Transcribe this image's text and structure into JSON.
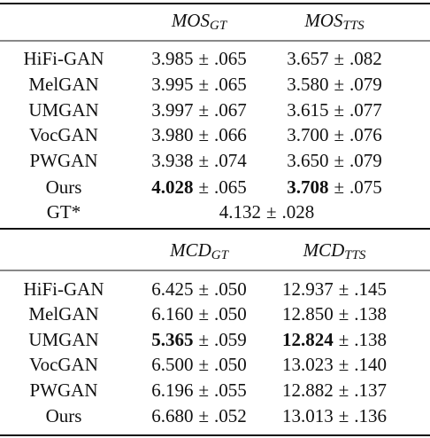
{
  "sections": [
    {
      "header": [
        {
          "main": "MOS",
          "sub": "GT"
        },
        {
          "main": "MOS",
          "sub": "TTS"
        }
      ],
      "rows": [
        {
          "name": "HiFi-GAN",
          "cells": [
            {
              "mean": "3.985",
              "pm": "±",
              "err": ".065"
            },
            {
              "mean": "3.657",
              "pm": "±",
              "err": ".082"
            }
          ]
        },
        {
          "name": "MelGAN",
          "cells": [
            {
              "mean": "3.995",
              "pm": "±",
              "err": ".065"
            },
            {
              "mean": "3.580",
              "pm": "±",
              "err": ".079"
            }
          ]
        },
        {
          "name": "UMGAN",
          "cells": [
            {
              "mean": "3.997",
              "pm": "±",
              "err": ".067"
            },
            {
              "mean": "3.615",
              "pm": "±",
              "err": ".077"
            }
          ]
        },
        {
          "name": "VocGAN",
          "cells": [
            {
              "mean": "3.980",
              "pm": "±",
              "err": ".066"
            },
            {
              "mean": "3.700",
              "pm": "±",
              "err": ".076"
            }
          ]
        },
        {
          "name": "PWGAN",
          "cells": [
            {
              "mean": "3.938",
              "pm": "±",
              "err": ".074"
            },
            {
              "mean": "3.650",
              "pm": "±",
              "err": ".079"
            }
          ]
        },
        {
          "name": "Ours",
          "cells": [
            {
              "mean": "4.028",
              "pm": "±",
              "err": ".065",
              "bold": true
            },
            {
              "mean": "3.708",
              "pm": "±",
              "err": ".075",
              "bold": true
            }
          ]
        },
        {
          "name": "GT*",
          "span": {
            "mean": "4.132",
            "pm": "±",
            "err": ".028"
          }
        }
      ]
    },
    {
      "header": [
        {
          "main": "MCD",
          "sub": "GT"
        },
        {
          "main": "MCD",
          "sub": "TTS"
        }
      ],
      "rows": [
        {
          "name": "HiFi-GAN",
          "cells": [
            {
              "mean": "6.425",
              "pm": "±",
              "err": ".050"
            },
            {
              "mean": "12.937",
              "pm": "±",
              "err": ".145"
            }
          ]
        },
        {
          "name": "MelGAN",
          "cells": [
            {
              "mean": "6.160",
              "pm": "±",
              "err": ".050"
            },
            {
              "mean": "12.850",
              "pm": "±",
              "err": ".138"
            }
          ]
        },
        {
          "name": "UMGAN",
          "cells": [
            {
              "mean": "5.365",
              "pm": "±",
              "err": ".059",
              "bold": true
            },
            {
              "mean": "12.824",
              "pm": "±",
              "err": ".138",
              "bold": true
            }
          ]
        },
        {
          "name": "VocGAN",
          "cells": [
            {
              "mean": "6.500",
              "pm": "±",
              "err": ".050"
            },
            {
              "mean": "13.023",
              "pm": "±",
              "err": ".140"
            }
          ]
        },
        {
          "name": "PWGAN",
          "cells": [
            {
              "mean": "6.196",
              "pm": "±",
              "err": ".055"
            },
            {
              "mean": "12.882",
              "pm": "±",
              "err": ".137"
            }
          ]
        },
        {
          "name": "Ours",
          "cells": [
            {
              "mean": "6.680",
              "pm": "±",
              "err": ".052"
            },
            {
              "mean": "13.013",
              "pm": "±",
              "err": ".136"
            }
          ]
        }
      ]
    }
  ]
}
